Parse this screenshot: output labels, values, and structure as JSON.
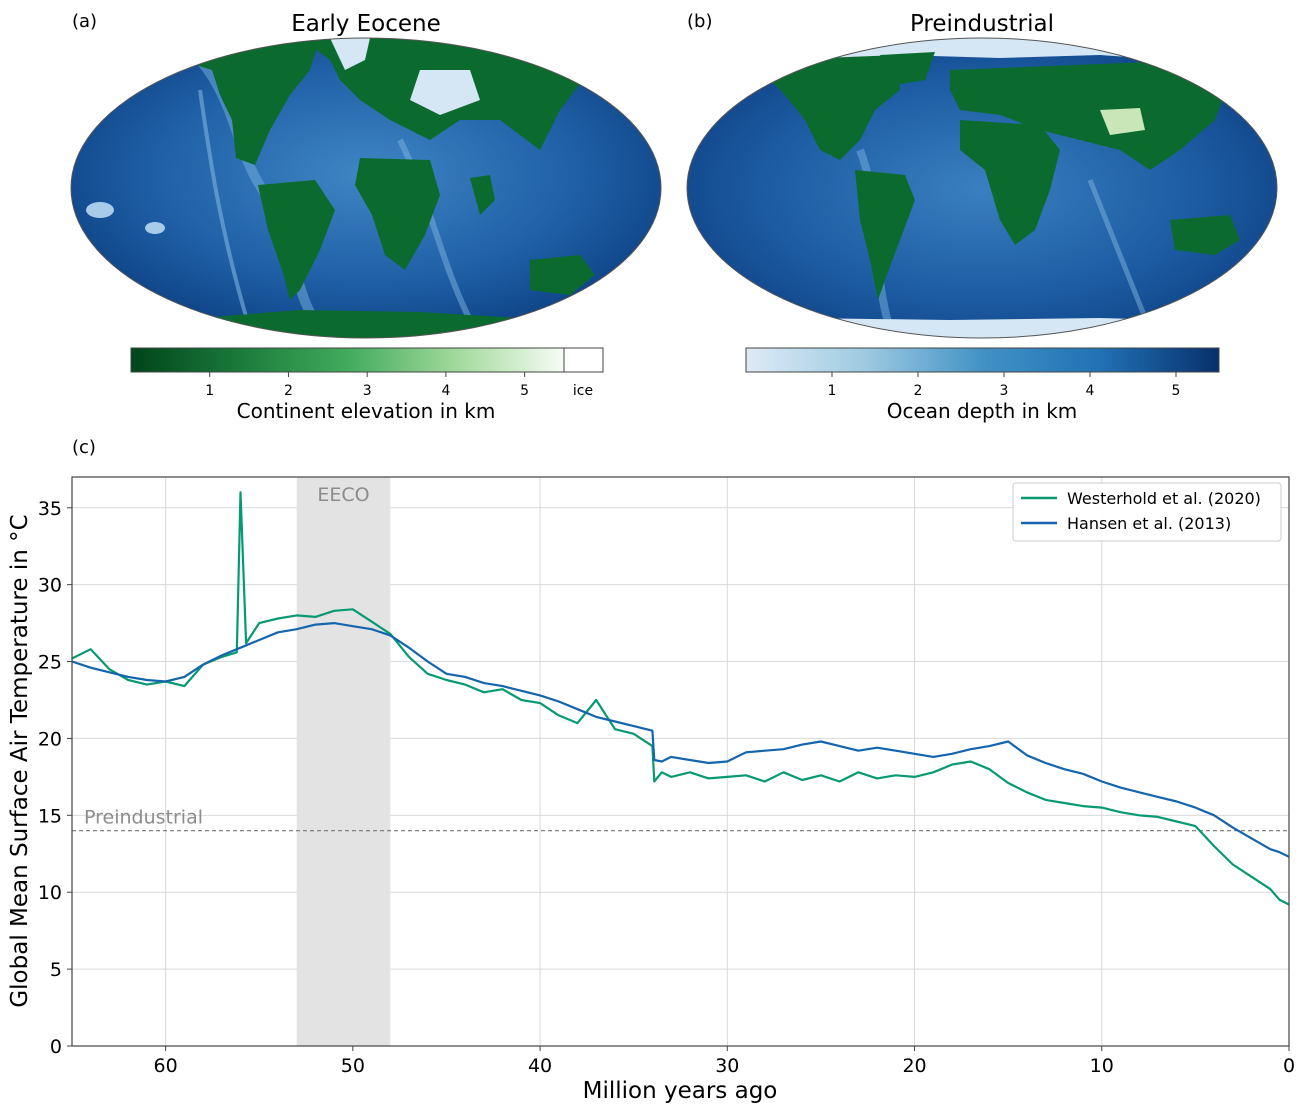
{
  "panels": {
    "a": {
      "letter": "(a)",
      "title": "Early Eocene",
      "colorbar_label": "Continent elevation in km",
      "colorbar_ticks": [
        "1",
        "2",
        "3",
        "4",
        "5"
      ],
      "ice_label": "ice",
      "colors": [
        "#00441b",
        "#1b7a3a",
        "#41ab5d",
        "#a1d99b",
        "#f7fcf5"
      ]
    },
    "b": {
      "letter": "(b)",
      "title": "Preindustrial",
      "colorbar_label": "Ocean depth in km",
      "colorbar_ticks": [
        "1",
        "2",
        "3",
        "4",
        "5"
      ],
      "colors": [
        "#deebf7",
        "#9ecae1",
        "#4292c6",
        "#2171b5",
        "#08306b"
      ]
    },
    "c": {
      "letter": "(c)"
    }
  },
  "chart_data": {
    "type": "line",
    "xlabel": "Million years ago",
    "ylabel": "Global Mean Surface Air Temperature in °C",
    "xlim": [
      65,
      0
    ],
    "ylim": [
      0,
      37
    ],
    "xticks": [
      60,
      50,
      40,
      30,
      20,
      10,
      0
    ],
    "yticks": [
      0,
      5,
      10,
      15,
      20,
      25,
      30,
      35
    ],
    "grid": true,
    "legend_position": "top-right",
    "shaded_region": {
      "label": "EECO",
      "x": [
        53,
        48
      ]
    },
    "reference_line": {
      "label": "Preindustrial",
      "y": 14
    },
    "series": [
      {
        "name": "Westerhold et al. (2020)",
        "color": "#079a72",
        "x": [
          65,
          64,
          63,
          62,
          61,
          60,
          59,
          58,
          57,
          56.2,
          56,
          55.7,
          55,
          54,
          53,
          52,
          51,
          50,
          49,
          48,
          47,
          46,
          45,
          44,
          43,
          42,
          41,
          40,
          39,
          38,
          37,
          36,
          35,
          34,
          33.9,
          33.5,
          33,
          32,
          31,
          30,
          29,
          28,
          27,
          26,
          25,
          24,
          23,
          22,
          21,
          20,
          19,
          18,
          17,
          16,
          15,
          14,
          13,
          12,
          11,
          10,
          9,
          8,
          7,
          6,
          5,
          4,
          3,
          2,
          1,
          0.5,
          0
        ],
        "y": [
          25.2,
          25.8,
          24.5,
          23.8,
          23.5,
          23.7,
          23.4,
          24.8,
          25.3,
          25.6,
          36,
          26.2,
          27.5,
          27.8,
          28,
          27.9,
          28.3,
          28.4,
          27.6,
          26.8,
          25.3,
          24.2,
          23.8,
          23.5,
          23.0,
          23.2,
          22.5,
          22.3,
          21.5,
          21.0,
          22.5,
          20.6,
          20.3,
          19.5,
          17.2,
          17.8,
          17.5,
          17.8,
          17.4,
          17.5,
          17.6,
          17.2,
          17.8,
          17.3,
          17.6,
          17.2,
          17.8,
          17.4,
          17.6,
          17.5,
          17.8,
          18.3,
          18.5,
          18.0,
          17.1,
          16.5,
          16.0,
          15.8,
          15.6,
          15.5,
          15.2,
          15.0,
          14.9,
          14.6,
          14.3,
          13.0,
          11.8,
          11.0,
          10.2,
          9.5,
          9.2
        ]
      },
      {
        "name": "Hansen et al. (2013)",
        "color": "#1465ad",
        "x": [
          65,
          64,
          63,
          62,
          61,
          60,
          59,
          58,
          57,
          56,
          55,
          54,
          53,
          52,
          51,
          50,
          49,
          48,
          47,
          46,
          45,
          44,
          43,
          42,
          41,
          40,
          39,
          38,
          37,
          36,
          35,
          34,
          33.9,
          33.5,
          33,
          32,
          31,
          30,
          29,
          28,
          27,
          26,
          25,
          24,
          23,
          22,
          21,
          20,
          19,
          18,
          17,
          16,
          15,
          14,
          13,
          12,
          11,
          10,
          9,
          8,
          7,
          6,
          5,
          4,
          3,
          2,
          1,
          0.5,
          0
        ],
        "y": [
          25.0,
          24.6,
          24.3,
          24.0,
          23.8,
          23.7,
          24.0,
          24.8,
          25.4,
          25.9,
          26.4,
          26.9,
          27.1,
          27.4,
          27.5,
          27.3,
          27.1,
          26.7,
          25.9,
          25.0,
          24.2,
          24.0,
          23.6,
          23.4,
          23.1,
          22.8,
          22.4,
          21.9,
          21.4,
          21.1,
          20.8,
          20.5,
          18.6,
          18.5,
          18.8,
          18.6,
          18.4,
          18.5,
          19.1,
          19.2,
          19.3,
          19.6,
          19.8,
          19.5,
          19.2,
          19.4,
          19.2,
          19.0,
          18.8,
          19.0,
          19.3,
          19.5,
          19.8,
          18.9,
          18.4,
          18.0,
          17.7,
          17.2,
          16.8,
          16.5,
          16.2,
          15.9,
          15.5,
          15.0,
          14.2,
          13.5,
          12.8,
          12.6,
          12.3
        ]
      }
    ]
  }
}
